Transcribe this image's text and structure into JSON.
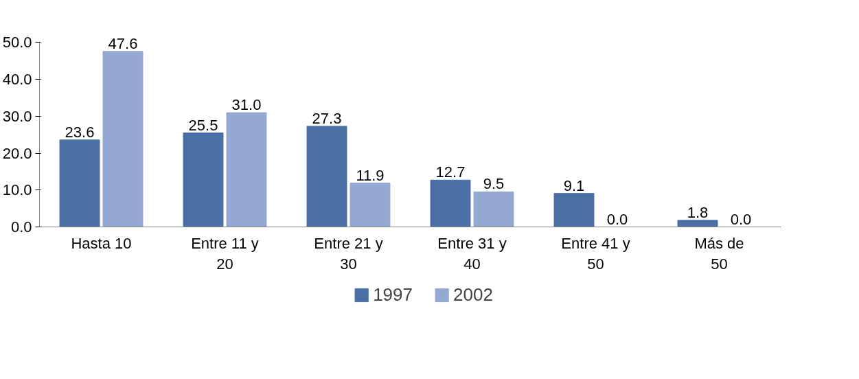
{
  "chart_data": {
    "type": "bar",
    "categories": [
      "Hasta 10",
      "Entre 11 y 20",
      "Entre 21 y 30",
      "Entre 31 y 40",
      "Entre 41 y 50",
      "Más de 50"
    ],
    "series": [
      {
        "name": "1997",
        "color": "#4a6fa5",
        "values": [
          23.6,
          25.5,
          27.3,
          12.7,
          9.1,
          1.8
        ],
        "value_labels": [
          "23.6",
          "25.5",
          "27.3",
          "12.7",
          "9.1",
          "1.8"
        ]
      },
      {
        "name": "2002",
        "color": "#95a8d2",
        "values": [
          47.6,
          31.0,
          11.9,
          9.5,
          0.0,
          0.0
        ],
        "value_labels": [
          "47.6",
          "31.0",
          "11.9",
          "9.5",
          "0.0",
          "0.0"
        ]
      }
    ],
    "ylim": [
      0,
      50
    ],
    "yticks": [
      {
        "value": 0,
        "label": "0.0"
      },
      {
        "value": 10,
        "label": "10.0"
      },
      {
        "value": 20,
        "label": "20.0"
      },
      {
        "value": 30,
        "label": "30.0"
      },
      {
        "value": 40,
        "label": "40.0"
      },
      {
        "value": 50,
        "label": "50.0"
      }
    ],
    "grid": false,
    "legend": "bottom"
  }
}
